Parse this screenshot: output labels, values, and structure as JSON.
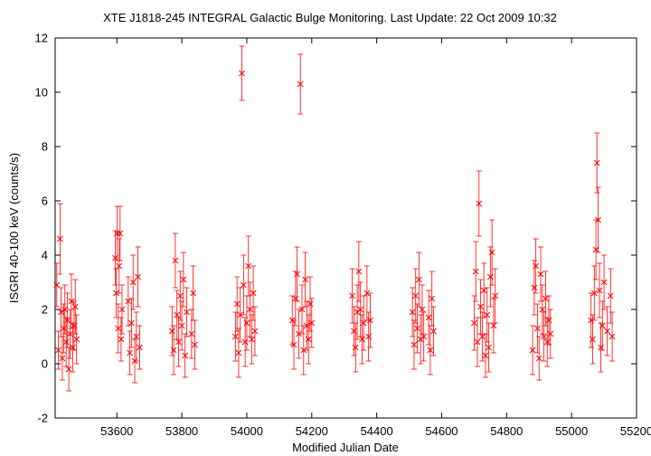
{
  "chart_data": {
    "type": "scatter",
    "title": "XTE J1818-245   INTEGRAL Galactic Bulge Monitoring.  Last Update: 22 Oct 2009 10:32",
    "xlabel": "Modified Julian Date",
    "ylabel": "ISGRI 40-100 keV (counts/s)",
    "xlim": [
      53410,
      55200
    ],
    "ylim": [
      -2,
      12
    ],
    "xticks": [
      "53600",
      "53800",
      "54000",
      "54200",
      "54400",
      "54600",
      "54800",
      "55000",
      "55200"
    ],
    "yticks": [
      "-2",
      "0",
      "2",
      "4",
      "6",
      "8",
      "10",
      "12"
    ],
    "grid": false,
    "series": [
      {
        "marker": "x",
        "color": "#ff0000",
        "points": [
          {
            "x": 53415,
            "y": 2.9,
            "err": 0.8
          },
          {
            "x": 53420,
            "y": 0.5,
            "err": 0.7
          },
          {
            "x": 53425,
            "y": 4.6,
            "err": 1.3
          },
          {
            "x": 53428,
            "y": 1.9,
            "err": 0.9
          },
          {
            "x": 53432,
            "y": 0.2,
            "err": 0.8
          },
          {
            "x": 53436,
            "y": 1.3,
            "err": 0.9
          },
          {
            "x": 53440,
            "y": 2.0,
            "err": 0.9
          },
          {
            "x": 53444,
            "y": 0.8,
            "err": 0.9
          },
          {
            "x": 53448,
            "y": 1.6,
            "err": 1.0
          },
          {
            "x": 53452,
            "y": -0.2,
            "err": 0.8
          },
          {
            "x": 53456,
            "y": 1.1,
            "err": 0.9
          },
          {
            "x": 53460,
            "y": 2.3,
            "err": 1.0
          },
          {
            "x": 53464,
            "y": 0.6,
            "err": 0.9
          },
          {
            "x": 53468,
            "y": 1.4,
            "err": 0.9
          },
          {
            "x": 53472,
            "y": 2.1,
            "err": 1.0
          },
          {
            "x": 53476,
            "y": 0.9,
            "err": 0.9
          },
          {
            "x": 53595,
            "y": 3.9,
            "err": 1.0
          },
          {
            "x": 53598,
            "y": 2.6,
            "err": 0.9
          },
          {
            "x": 53601,
            "y": 4.8,
            "err": 1.0
          },
          {
            "x": 53604,
            "y": 1.3,
            "err": 0.9
          },
          {
            "x": 53607,
            "y": 3.6,
            "err": 1.0
          },
          {
            "x": 53610,
            "y": 4.8,
            "err": 1.0
          },
          {
            "x": 53613,
            "y": 0.9,
            "err": 0.8
          },
          {
            "x": 53616,
            "y": 2.0,
            "err": 0.9
          },
          {
            "x": 53635,
            "y": 2.3,
            "err": 0.9
          },
          {
            "x": 53640,
            "y": 0.4,
            "err": 0.8
          },
          {
            "x": 53645,
            "y": 1.5,
            "err": 0.9
          },
          {
            "x": 53650,
            "y": 3.0,
            "err": 1.0
          },
          {
            "x": 53655,
            "y": 0.1,
            "err": 0.8
          },
          {
            "x": 53660,
            "y": 1.0,
            "err": 0.9
          },
          {
            "x": 53665,
            "y": 3.2,
            "err": 1.1
          },
          {
            "x": 53670,
            "y": 0.6,
            "err": 0.8
          },
          {
            "x": 53770,
            "y": 1.2,
            "err": 0.9
          },
          {
            "x": 53775,
            "y": 0.5,
            "err": 0.9
          },
          {
            "x": 53780,
            "y": 3.8,
            "err": 1.0
          },
          {
            "x": 53785,
            "y": 1.8,
            "err": 0.9
          },
          {
            "x": 53790,
            "y": 0.8,
            "err": 0.9
          },
          {
            "x": 53795,
            "y": 2.5,
            "err": 0.9
          },
          {
            "x": 53800,
            "y": 1.4,
            "err": 0.9
          },
          {
            "x": 53805,
            "y": 3.1,
            "err": 1.0
          },
          {
            "x": 53810,
            "y": 0.3,
            "err": 0.8
          },
          {
            "x": 53815,
            "y": 1.9,
            "err": 0.9
          },
          {
            "x": 53830,
            "y": 1.1,
            "err": 0.9
          },
          {
            "x": 53835,
            "y": 2.6,
            "err": 1.0
          },
          {
            "x": 53840,
            "y": 0.7,
            "err": 0.9
          },
          {
            "x": 53965,
            "y": 1.0,
            "err": 0.9
          },
          {
            "x": 53970,
            "y": 2.2,
            "err": 1.0
          },
          {
            "x": 53975,
            "y": 0.4,
            "err": 0.9
          },
          {
            "x": 53980,
            "y": 1.8,
            "err": 1.0
          },
          {
            "x": 53985,
            "y": 10.7,
            "err": 1.0
          },
          {
            "x": 53990,
            "y": 2.9,
            "err": 1.1
          },
          {
            "x": 53995,
            "y": 0.8,
            "err": 0.9
          },
          {
            "x": 54000,
            "y": 1.5,
            "err": 1.0
          },
          {
            "x": 54005,
            "y": 3.6,
            "err": 1.1
          },
          {
            "x": 54010,
            "y": 2.0,
            "err": 1.0
          },
          {
            "x": 54015,
            "y": 0.9,
            "err": 0.9
          },
          {
            "x": 54020,
            "y": 2.6,
            "err": 1.0
          },
          {
            "x": 54025,
            "y": 1.2,
            "err": 0.9
          },
          {
            "x": 54140,
            "y": 1.6,
            "err": 0.9
          },
          {
            "x": 54145,
            "y": 0.7,
            "err": 0.9
          },
          {
            "x": 54150,
            "y": 2.4,
            "err": 1.0
          },
          {
            "x": 54155,
            "y": 3.3,
            "err": 1.0
          },
          {
            "x": 54160,
            "y": 1.1,
            "err": 0.9
          },
          {
            "x": 54165,
            "y": 10.3,
            "err": 1.1
          },
          {
            "x": 54170,
            "y": 2.0,
            "err": 0.9
          },
          {
            "x": 54175,
            "y": 0.5,
            "err": 0.9
          },
          {
            "x": 54180,
            "y": 3.1,
            "err": 1.0
          },
          {
            "x": 54185,
            "y": 1.4,
            "err": 0.9
          },
          {
            "x": 54190,
            "y": 0.9,
            "err": 0.9
          },
          {
            "x": 54195,
            "y": 2.2,
            "err": 1.0
          },
          {
            "x": 54200,
            "y": 1.5,
            "err": 0.9
          },
          {
            "x": 54325,
            "y": 2.5,
            "err": 1.0
          },
          {
            "x": 54330,
            "y": 1.2,
            "err": 0.9
          },
          {
            "x": 54335,
            "y": 0.6,
            "err": 0.9
          },
          {
            "x": 54340,
            "y": 1.9,
            "err": 1.0
          },
          {
            "x": 54345,
            "y": 3.4,
            "err": 1.1
          },
          {
            "x": 54350,
            "y": 2.0,
            "err": 1.0
          },
          {
            "x": 54355,
            "y": 0.9,
            "err": 0.9
          },
          {
            "x": 54360,
            "y": 1.5,
            "err": 1.0
          },
          {
            "x": 54370,
            "y": 2.6,
            "err": 1.0
          },
          {
            "x": 54375,
            "y": 1.0,
            "err": 0.9
          },
          {
            "x": 54380,
            "y": 1.6,
            "err": 1.0
          },
          {
            "x": 54510,
            "y": 1.9,
            "err": 0.9
          },
          {
            "x": 54515,
            "y": 0.7,
            "err": 0.9
          },
          {
            "x": 54520,
            "y": 2.5,
            "err": 1.0
          },
          {
            "x": 54525,
            "y": 1.3,
            "err": 0.9
          },
          {
            "x": 54530,
            "y": 3.1,
            "err": 1.0
          },
          {
            "x": 54535,
            "y": 0.9,
            "err": 0.9
          },
          {
            "x": 54540,
            "y": 2.0,
            "err": 0.9
          },
          {
            "x": 54545,
            "y": 1.0,
            "err": 0.9
          },
          {
            "x": 54560,
            "y": 1.7,
            "err": 1.0
          },
          {
            "x": 54565,
            "y": 0.5,
            "err": 0.9
          },
          {
            "x": 54570,
            "y": 2.4,
            "err": 1.0
          },
          {
            "x": 54575,
            "y": 1.2,
            "err": 0.9
          },
          {
            "x": 54700,
            "y": 1.5,
            "err": 1.0
          },
          {
            "x": 54705,
            "y": 3.4,
            "err": 1.1
          },
          {
            "x": 54710,
            "y": 0.8,
            "err": 0.9
          },
          {
            "x": 54715,
            "y": 5.9,
            "err": 1.2
          },
          {
            "x": 54720,
            "y": 2.1,
            "err": 1.0
          },
          {
            "x": 54725,
            "y": 1.0,
            "err": 0.9
          },
          {
            "x": 54730,
            "y": 2.7,
            "err": 1.0
          },
          {
            "x": 54735,
            "y": 0.3,
            "err": 0.8
          },
          {
            "x": 54740,
            "y": 1.8,
            "err": 1.0
          },
          {
            "x": 54745,
            "y": 0.6,
            "err": 0.9
          },
          {
            "x": 54750,
            "y": 3.2,
            "err": 1.1
          },
          {
            "x": 54755,
            "y": 4.1,
            "err": 1.2
          },
          {
            "x": 54760,
            "y": 1.4,
            "err": 1.0
          },
          {
            "x": 54765,
            "y": 2.5,
            "err": 1.0
          },
          {
            "x": 54880,
            "y": 0.5,
            "err": 0.9
          },
          {
            "x": 54885,
            "y": 2.8,
            "err": 1.0
          },
          {
            "x": 54890,
            "y": 3.6,
            "err": 1.0
          },
          {
            "x": 54895,
            "y": 1.3,
            "err": 0.9
          },
          {
            "x": 54900,
            "y": 0.2,
            "err": 0.8
          },
          {
            "x": 54905,
            "y": 3.3,
            "err": 1.0
          },
          {
            "x": 54910,
            "y": 2.0,
            "err": 0.9
          },
          {
            "x": 54915,
            "y": 1.0,
            "err": 0.9
          },
          {
            "x": 54920,
            "y": 2.4,
            "err": 1.0
          },
          {
            "x": 54925,
            "y": 0.8,
            "err": 0.9
          },
          {
            "x": 54930,
            "y": 1.6,
            "err": 0.9
          },
          {
            "x": 54935,
            "y": 1.1,
            "err": 0.9
          },
          {
            "x": 55060,
            "y": 1.6,
            "err": 1.0
          },
          {
            "x": 55065,
            "y": 0.9,
            "err": 0.9
          },
          {
            "x": 55070,
            "y": 2.6,
            "err": 1.0
          },
          {
            "x": 55075,
            "y": 4.2,
            "err": 1.1
          },
          {
            "x": 55078,
            "y": 7.4,
            "err": 1.1
          },
          {
            "x": 55082,
            "y": 5.3,
            "err": 1.2
          },
          {
            "x": 55086,
            "y": 2.7,
            "err": 1.0
          },
          {
            "x": 55090,
            "y": 0.6,
            "err": 0.9
          },
          {
            "x": 55095,
            "y": 1.4,
            "err": 0.9
          },
          {
            "x": 55100,
            "y": 3.0,
            "err": 1.0
          },
          {
            "x": 55110,
            "y": 1.2,
            "err": 0.9
          },
          {
            "x": 55120,
            "y": 2.5,
            "err": 1.0
          },
          {
            "x": 55125,
            "y": 1.0,
            "err": 0.9
          }
        ]
      }
    ]
  }
}
